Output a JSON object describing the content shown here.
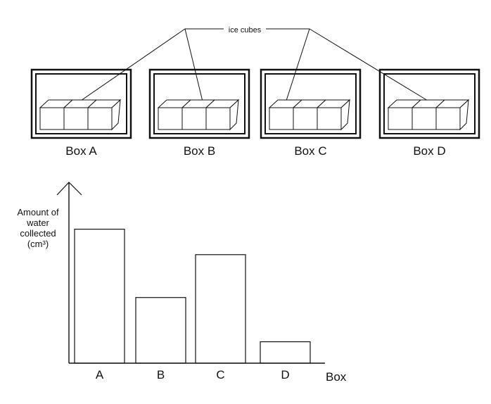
{
  "diagram": {
    "callout_label": "ice cubes",
    "boxes": [
      {
        "label": "Box A",
        "cubes": 3
      },
      {
        "label": "Box B",
        "cubes": 3
      },
      {
        "label": "Box C",
        "cubes": 3
      },
      {
        "label": "Box D",
        "cubes": 3
      }
    ]
  },
  "chart_data": {
    "type": "bar",
    "title": "",
    "xlabel": "Box",
    "ylabel_lines": [
      "Amount of",
      "water",
      "collected",
      "(cm³)"
    ],
    "categories": [
      "A",
      "B",
      "C",
      "D"
    ],
    "values": [
      10,
      4.9,
      8.1,
      1.6
    ],
    "ylim": [
      0,
      13.5
    ],
    "grid": false,
    "y_ticks_shown": false,
    "bar_colors": [
      "#111111",
      "#111111",
      "#111111",
      "#111111"
    ]
  }
}
